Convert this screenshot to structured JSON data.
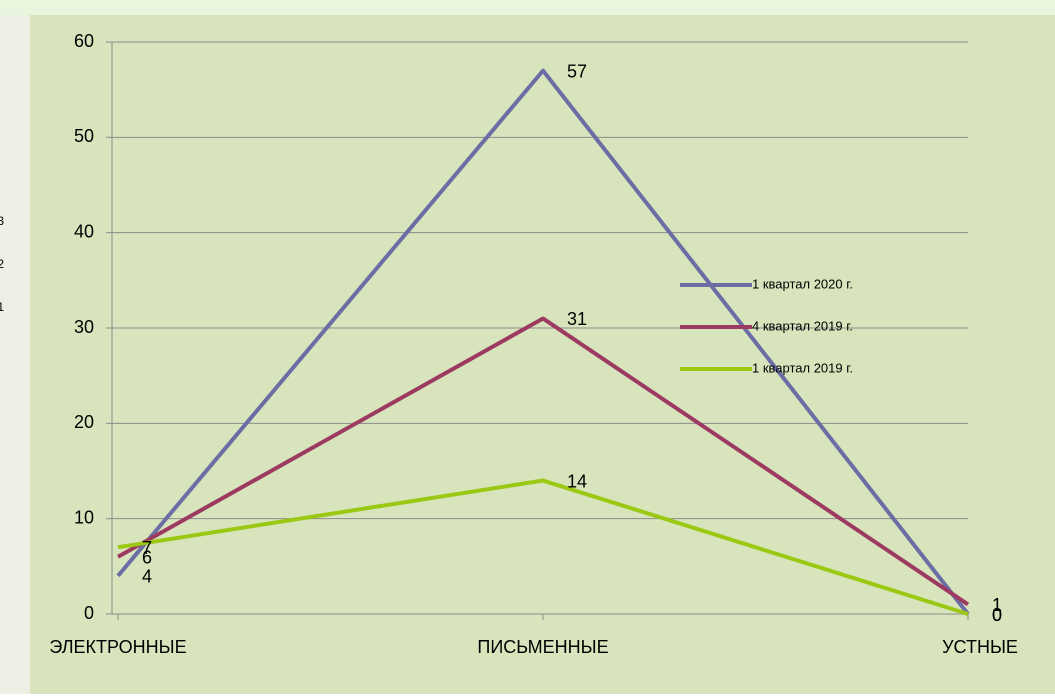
{
  "side_labels": [
    "3",
    "2",
    "1"
  ],
  "chart_data": {
    "type": "line",
    "categories": [
      "ЭЛЕКТРОННЫЕ",
      "ПИСЬМЕННЫЕ",
      "УСТНЫЕ"
    ],
    "series": [
      {
        "name": "1 квартал 2020 г.",
        "color": "#6a6ea4",
        "values": [
          4,
          57,
          0
        ]
      },
      {
        "name": "4 квартал 2019 г.",
        "color": "#9c3a62",
        "values": [
          6,
          31,
          1
        ]
      },
      {
        "name": "1 квартал 2019 г.",
        "color": "#9bc813",
        "values": [
          7,
          14,
          0
        ]
      }
    ],
    "ylim": [
      0,
      60
    ],
    "yticks": [
      0,
      10,
      20,
      30,
      40,
      50,
      60
    ],
    "grid": true,
    "legend": "right"
  }
}
